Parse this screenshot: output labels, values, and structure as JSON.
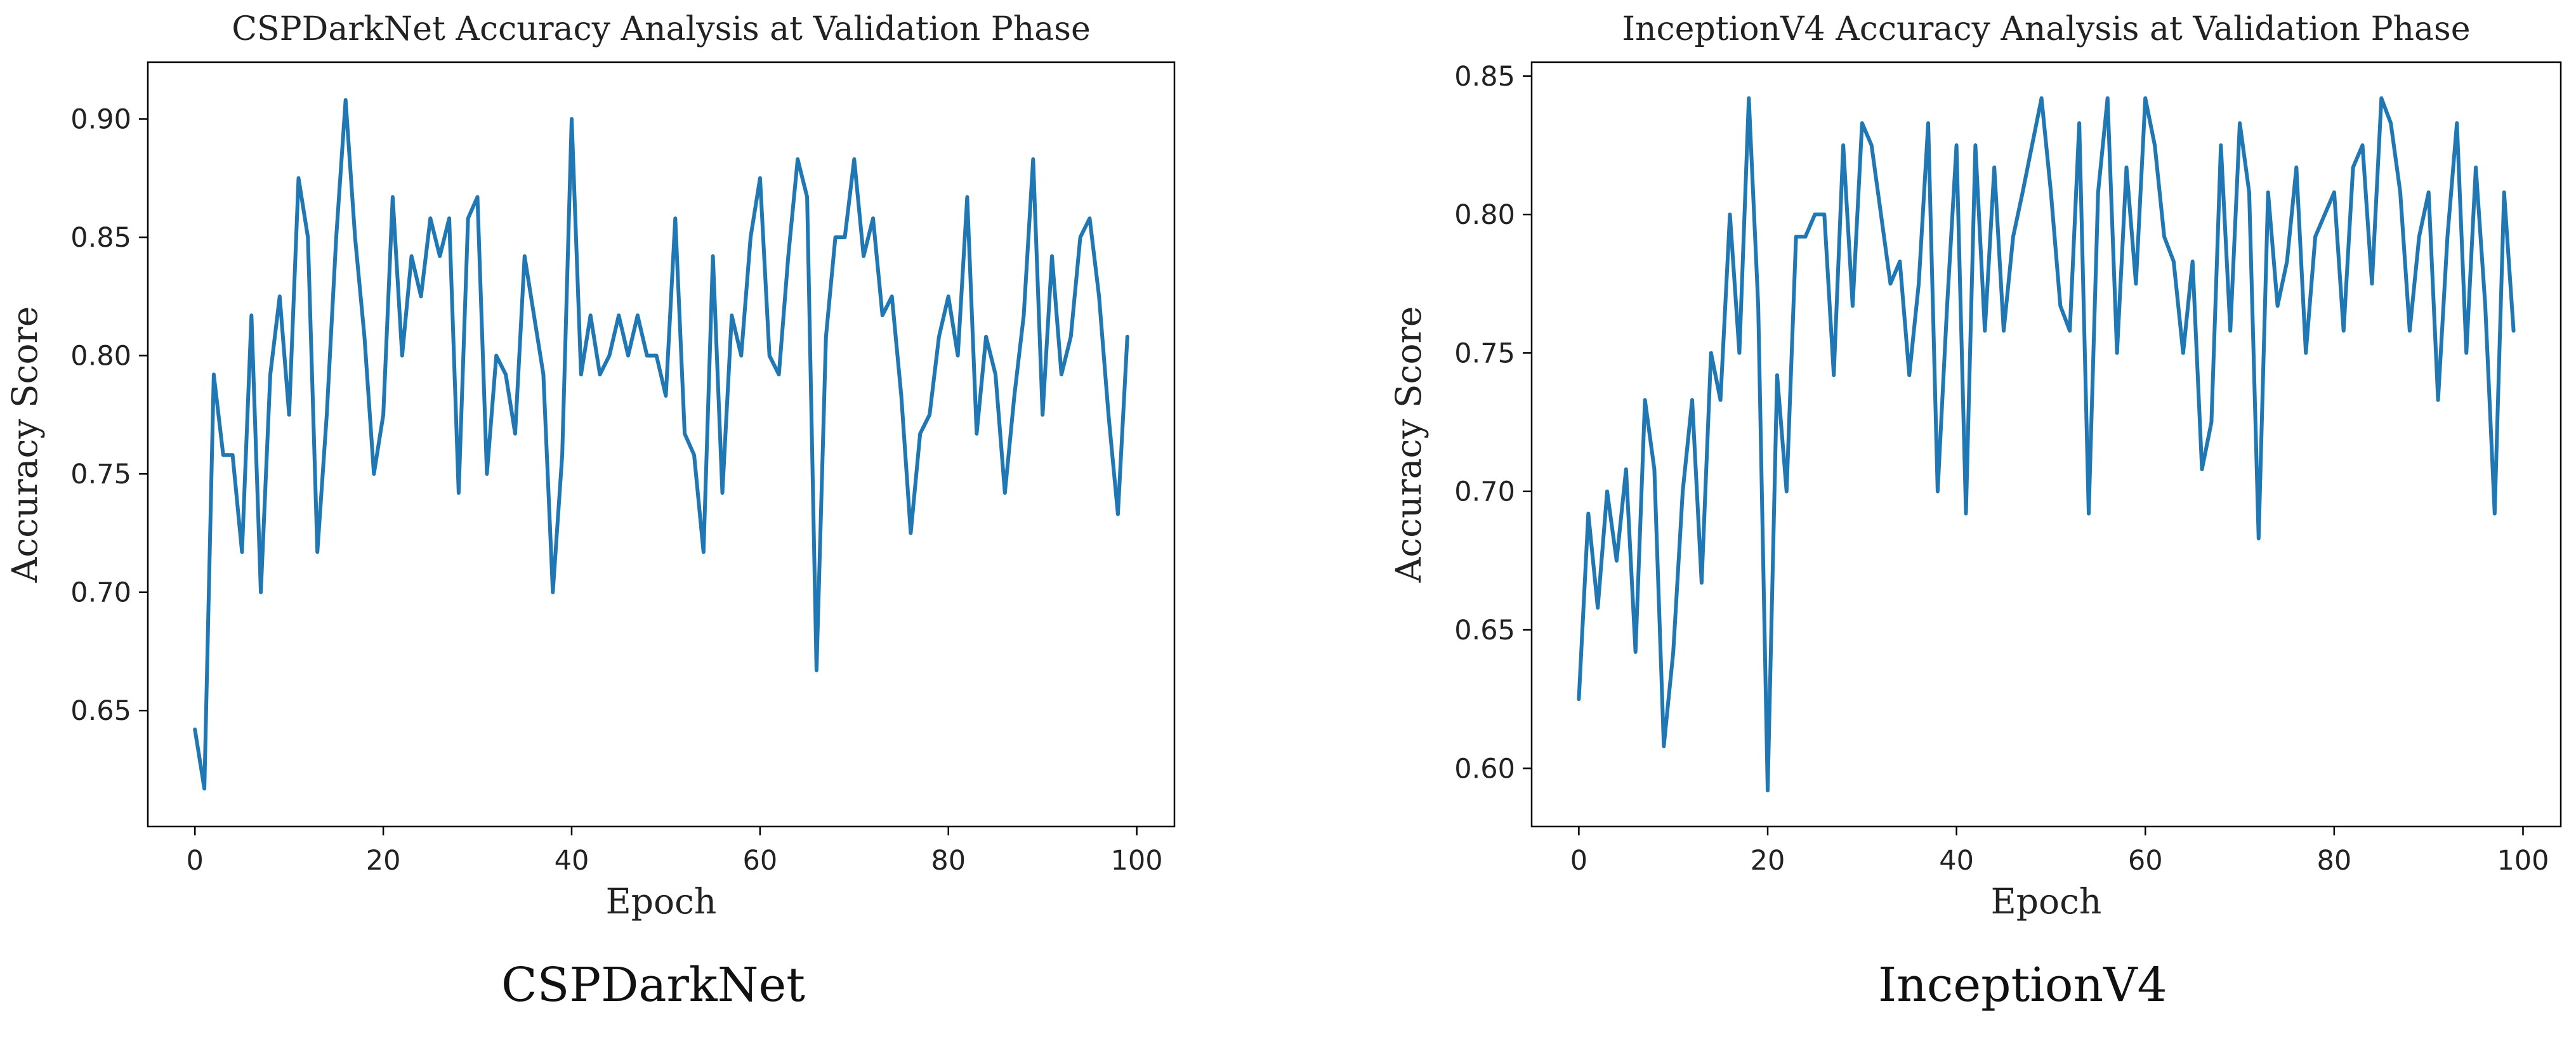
{
  "captions": {
    "left": "CSPDarkNet",
    "right": "InceptionV4"
  },
  "chart_data": [
    {
      "type": "line",
      "title": "CSPDarkNet Accuracy Analysis at Validation Phase",
      "xlabel": "Epoch",
      "ylabel": "Accuracy Score",
      "xlim": [
        -5,
        104
      ],
      "ylim": [
        0.601,
        0.924
      ],
      "xticks": [
        0,
        20,
        40,
        60,
        80,
        100
      ],
      "xtick_labels": [
        "0",
        "20",
        "40",
        "60",
        "80",
        "100"
      ],
      "yticks": [
        0.65,
        0.7,
        0.75,
        0.8,
        0.85,
        0.9
      ],
      "ytick_labels": [
        "0.65",
        "0.70",
        "0.75",
        "0.80",
        "0.85",
        "0.90"
      ],
      "grid": false,
      "line_color": "#1f77b4",
      "series": [
        {
          "name": "CSPDarkNet",
          "x": [
            0,
            1,
            2,
            3,
            4,
            5,
            6,
            7,
            8,
            9,
            10,
            11,
            12,
            13,
            14,
            15,
            16,
            17,
            18,
            19,
            20,
            21,
            22,
            23,
            24,
            25,
            26,
            27,
            28,
            29,
            30,
            31,
            32,
            33,
            34,
            35,
            36,
            37,
            38,
            39,
            40,
            41,
            42,
            43,
            44,
            45,
            46,
            47,
            48,
            49,
            50,
            51,
            52,
            53,
            54,
            55,
            56,
            57,
            58,
            59,
            60,
            61,
            62,
            63,
            64,
            65,
            66,
            67,
            68,
            69,
            70,
            71,
            72,
            73,
            74,
            75,
            76,
            77,
            78,
            79,
            80,
            81,
            82,
            83,
            84,
            85,
            86,
            87,
            88,
            89,
            90,
            91,
            92,
            93,
            94,
            95,
            96,
            97,
            98,
            99
          ],
          "values": [
            0.642,
            0.617,
            0.792,
            0.758,
            0.758,
            0.717,
            0.817,
            0.7,
            0.792,
            0.825,
            0.775,
            0.875,
            0.85,
            0.717,
            0.775,
            0.85,
            0.908,
            0.85,
            0.808,
            0.75,
            0.775,
            0.867,
            0.8,
            0.842,
            0.825,
            0.858,
            0.842,
            0.858,
            0.742,
            0.858,
            0.867,
            0.75,
            0.8,
            0.792,
            0.767,
            0.842,
            0.817,
            0.792,
            0.7,
            0.758,
            0.9,
            0.792,
            0.817,
            0.792,
            0.8,
            0.817,
            0.8,
            0.817,
            0.8,
            0.8,
            0.783,
            0.858,
            0.767,
            0.758,
            0.717,
            0.842,
            0.742,
            0.817,
            0.8,
            0.85,
            0.875,
            0.8,
            0.792,
            0.842,
            0.883,
            0.867,
            0.667,
            0.808,
            0.85,
            0.85,
            0.883,
            0.842,
            0.858,
            0.817,
            0.825,
            0.783,
            0.725,
            0.767,
            0.775,
            0.808,
            0.825,
            0.8,
            0.867,
            0.767,
            0.808,
            0.792,
            0.742,
            0.783,
            0.817,
            0.883,
            0.775,
            0.842,
            0.792,
            0.808,
            0.85,
            0.858,
            0.825,
            0.775,
            0.733,
            0.808
          ]
        }
      ]
    },
    {
      "type": "line",
      "title": "InceptionV4 Accuracy Analysis at Validation Phase",
      "xlabel": "Epoch",
      "ylabel": "Accuracy Score",
      "xlim": [
        -5,
        104
      ],
      "ylim": [
        0.579,
        0.855
      ],
      "xticks": [
        0,
        20,
        40,
        60,
        80,
        100
      ],
      "xtick_labels": [
        "0",
        "20",
        "40",
        "60",
        "80",
        "100"
      ],
      "yticks": [
        0.6,
        0.65,
        0.7,
        0.75,
        0.8,
        0.85
      ],
      "ytick_labels": [
        "0.60",
        "0.65",
        "0.70",
        "0.75",
        "0.80",
        "0.85"
      ],
      "grid": false,
      "line_color": "#1f77b4",
      "series": [
        {
          "name": "InceptionV4",
          "x": [
            0,
            1,
            2,
            3,
            4,
            5,
            6,
            7,
            8,
            9,
            10,
            11,
            12,
            13,
            14,
            15,
            16,
            17,
            18,
            19,
            20,
            21,
            22,
            23,
            24,
            25,
            26,
            27,
            28,
            29,
            30,
            31,
            32,
            33,
            34,
            35,
            36,
            37,
            38,
            39,
            40,
            41,
            42,
            43,
            44,
            45,
            46,
            47,
            48,
            49,
            50,
            51,
            52,
            53,
            54,
            55,
            56,
            57,
            58,
            59,
            60,
            61,
            62,
            63,
            64,
            65,
            66,
            67,
            68,
            69,
            70,
            71,
            72,
            73,
            74,
            75,
            76,
            77,
            78,
            79,
            80,
            81,
            82,
            83,
            84,
            85,
            86,
            87,
            88,
            89,
            90,
            91,
            92,
            93,
            94,
            95,
            96,
            97,
            98,
            99
          ],
          "values": [
            0.625,
            0.692,
            0.658,
            0.7,
            0.675,
            0.708,
            0.642,
            0.733,
            0.708,
            0.608,
            0.642,
            0.7,
            0.733,
            0.667,
            0.75,
            0.733,
            0.8,
            0.75,
            0.842,
            0.767,
            0.592,
            0.742,
            0.7,
            0.792,
            0.792,
            0.8,
            0.8,
            0.742,
            0.825,
            0.767,
            0.833,
            0.825,
            0.8,
            0.775,
            0.783,
            0.742,
            0.775,
            0.833,
            0.7,
            0.767,
            0.825,
            0.692,
            0.825,
            0.758,
            0.817,
            0.758,
            0.792,
            0.808,
            0.825,
            0.842,
            0.808,
            0.767,
            0.758,
            0.833,
            0.692,
            0.808,
            0.842,
            0.75,
            0.817,
            0.775,
            0.842,
            0.825,
            0.792,
            0.783,
            0.75,
            0.783,
            0.708,
            0.725,
            0.825,
            0.758,
            0.833,
            0.808,
            0.683,
            0.808,
            0.767,
            0.783,
            0.817,
            0.75,
            0.792,
            0.8,
            0.808,
            0.758,
            0.817,
            0.825,
            0.775,
            0.842,
            0.833,
            0.808,
            0.758,
            0.792,
            0.808,
            0.733,
            0.792,
            0.833,
            0.75,
            0.817,
            0.767,
            0.692,
            0.808,
            0.758
          ]
        }
      ]
    }
  ]
}
